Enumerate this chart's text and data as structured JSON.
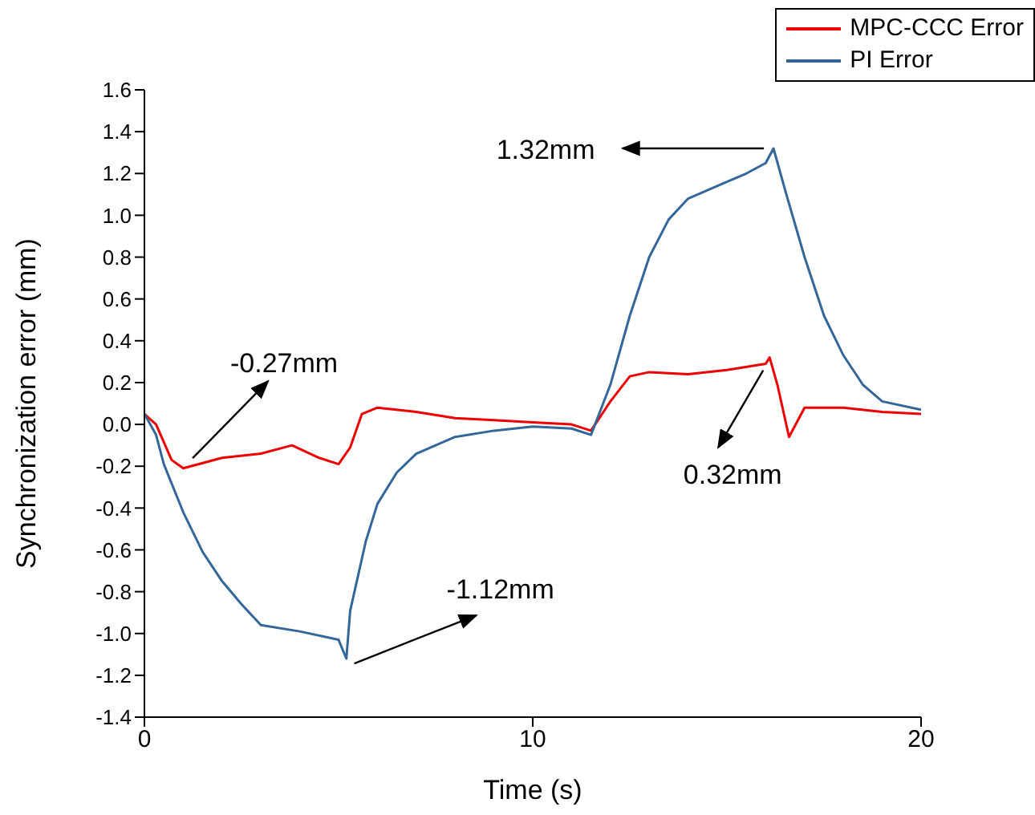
{
  "chart_data": {
    "type": "line",
    "xlabel": "Time (s)",
    "ylabel": "Synchronization error (mm)",
    "xlim": [
      0,
      20
    ],
    "xticks": [
      0,
      10,
      20
    ],
    "ylim": [
      -1.4,
      1.6
    ],
    "yticks": [
      -1.4,
      -1.2,
      {
        "value": -1.0,
        "label": "-1.0"
      },
      -0.8,
      -0.6,
      -0.4,
      -0.2,
      {
        "value": 0.0,
        "label": "0.0"
      },
      0.2,
      0.4,
      0.6,
      0.8,
      {
        "value": 1.0,
        "label": "1.0"
      },
      1.2,
      1.4,
      1.6
    ],
    "grid": false,
    "legend": "top right",
    "marker": "none",
    "line_style": "solid",
    "series": [
      {
        "name": "MPC-CCC Error",
        "color": "#ee0000",
        "x": [
          0,
          0.3,
          0.7,
          1,
          2,
          3,
          3.8,
          4.5,
          5,
          5.3,
          5.6,
          6,
          7,
          8,
          9,
          10,
          11,
          11.5,
          12,
          12.5,
          13,
          14,
          15,
          16,
          16.1,
          16.3,
          16.6,
          17,
          18,
          19,
          20
        ],
        "values": [
          0.05,
          0,
          -0.17,
          -0.21,
          -0.16,
          -0.14,
          -0.1,
          -0.16,
          -0.19,
          -0.11,
          0.05,
          0.08,
          0.06,
          0.03,
          0.02,
          0.01,
          0,
          -0.03,
          0.11,
          0.23,
          0.25,
          0.24,
          0.26,
          0.29,
          0.32,
          0.19,
          -0.06,
          0.08,
          0.08,
          0.06,
          0.05
        ]
      },
      {
        "name": "PI Error",
        "color": "#336699",
        "x": [
          0,
          0.3,
          0.5,
          1,
          1.5,
          2,
          2.5,
          3,
          4,
          5,
          5.2,
          5.3,
          5.7,
          6,
          6.5,
          7,
          8,
          9,
          10,
          11,
          11.5,
          12,
          12.5,
          13,
          13.5,
          14,
          15,
          15.5,
          16,
          16.2,
          16.5,
          17,
          17.5,
          18,
          18.5,
          19,
          20
        ],
        "values": [
          0.05,
          -0.05,
          -0.19,
          -0.42,
          -0.61,
          -0.75,
          -0.86,
          -0.96,
          -0.99,
          -1.03,
          -1.12,
          -0.89,
          -0.56,
          -0.38,
          -0.23,
          -0.14,
          -0.06,
          -0.03,
          -0.01,
          -0.02,
          -0.05,
          0.19,
          0.52,
          0.8,
          0.98,
          1.08,
          1.16,
          1.2,
          1.25,
          1.32,
          1.12,
          0.8,
          0.52,
          0.33,
          0.19,
          0.11,
          0.07
        ]
      }
    ],
    "annotations": [
      {
        "text": "-0.27mm",
        "x": 1.2,
        "y": -0.2
      },
      {
        "text": "-1.12mm",
        "x": 5.2,
        "y": -1.12
      },
      {
        "text": "1.32mm",
        "x": 16.2,
        "y": 1.32
      },
      {
        "text": "0.32mm",
        "x": 16.1,
        "y": 0.32
      }
    ]
  }
}
